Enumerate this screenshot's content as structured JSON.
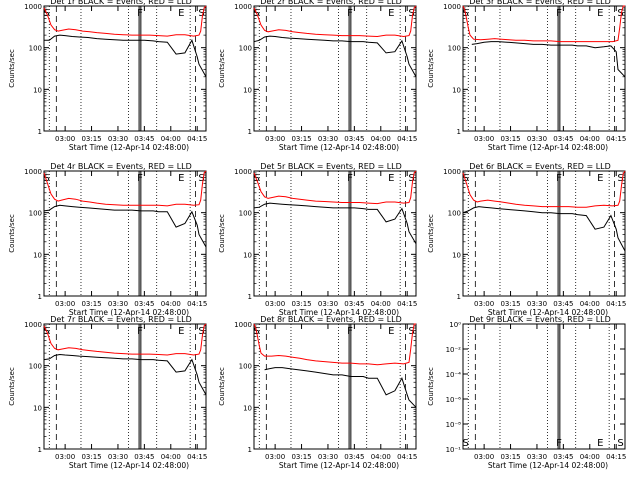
{
  "page": {
    "background": "#ffffff",
    "ink": "#000000",
    "lld_color": "#ff0000"
  },
  "shared": {
    "xlabel": "Start Time (12-Apr-14 02:48:00)",
    "ylabel": "Counts/sec",
    "x_ticks": [
      "03:00",
      "03:15",
      "03:30",
      "03:45",
      "04:00",
      "04:15"
    ],
    "y_ticks": [
      "1",
      "10",
      "100",
      "1000"
    ],
    "y_ticks_empty": [
      "10⁻¹",
      "10⁻⁸",
      "10⁻⁶",
      "10⁻⁴",
      "10⁻²",
      "10⁰"
    ],
    "event_letters": {
      "S": "S",
      "F": "F",
      "E": "E"
    }
  },
  "chart_data": [
    {
      "type": "line",
      "title": "Det 1r BLACK = Events, RED = LLD",
      "empty": false,
      "series": [
        {
          "name": "Events",
          "color": "#000000",
          "x": [
            0,
            3,
            6,
            9,
            12,
            16,
            20,
            25,
            30,
            35,
            40,
            45,
            50,
            55,
            57,
            62,
            65,
            70,
            75,
            80,
            84,
            87,
            88,
            92
          ],
          "y": [
            150,
            150,
            190,
            200,
            195,
            185,
            180,
            175,
            165,
            160,
            155,
            150,
            150,
            150,
            150,
            145,
            140,
            135,
            70,
            75,
            150,
            60,
            40,
            20
          ]
        },
        {
          "name": "LLD",
          "color": "#ff0000",
          "x": [
            0,
            2,
            4,
            6,
            8,
            10,
            14,
            18,
            22,
            26,
            30,
            35,
            40,
            45,
            50,
            55,
            60,
            65,
            70,
            75,
            80,
            85,
            88,
            89,
            90,
            91,
            92
          ],
          "y": [
            900,
            600,
            350,
            270,
            250,
            260,
            280,
            270,
            250,
            240,
            230,
            220,
            210,
            205,
            200,
            200,
            200,
            195,
            190,
            205,
            205,
            190,
            200,
            250,
            600,
            900,
            1000
          ]
        }
      ]
    },
    {
      "type": "line",
      "title": "Det 2r BLACK = Events, RED = LLD",
      "empty": false,
      "series": [
        {
          "name": "Events",
          "color": "#000000",
          "x": [
            0,
            3,
            6,
            9,
            12,
            16,
            20,
            25,
            30,
            35,
            40,
            45,
            50,
            55,
            57,
            62,
            65,
            70,
            75,
            80,
            84,
            87,
            88,
            92
          ],
          "y": [
            140,
            150,
            180,
            190,
            185,
            175,
            170,
            165,
            160,
            155,
            150,
            145,
            145,
            140,
            140,
            140,
            135,
            130,
            75,
            80,
            145,
            60,
            40,
            20
          ]
        },
        {
          "name": "LLD",
          "color": "#ff0000",
          "x": [
            0,
            2,
            4,
            6,
            8,
            10,
            14,
            18,
            22,
            26,
            30,
            35,
            40,
            45,
            50,
            55,
            60,
            65,
            70,
            75,
            80,
            85,
            88,
            89,
            90,
            91,
            92
          ],
          "y": [
            900,
            600,
            350,
            260,
            240,
            250,
            270,
            260,
            240,
            230,
            220,
            210,
            205,
            200,
            195,
            195,
            195,
            190,
            185,
            200,
            200,
            185,
            195,
            250,
            600,
            900,
            1000
          ]
        }
      ]
    },
    {
      "type": "line",
      "title": "Det 3r BLACK = Events, RED = LLD",
      "empty": false,
      "series": [
        {
          "name": "Events",
          "color": "#000000",
          "x": [
            5,
            8,
            12,
            16,
            20,
            25,
            30,
            35,
            40,
            45,
            50,
            55,
            57,
            62,
            65,
            70,
            75,
            80,
            84,
            87,
            88,
            92
          ],
          "y": [
            120,
            125,
            135,
            140,
            140,
            135,
            130,
            125,
            120,
            120,
            115,
            115,
            115,
            115,
            110,
            110,
            100,
            105,
            110,
            80,
            30,
            20
          ]
        },
        {
          "name": "LLD",
          "color": "#ff0000",
          "x": [
            0,
            1,
            2,
            3,
            4,
            6,
            10,
            14,
            18,
            22,
            26,
            30,
            35,
            40,
            45,
            50,
            55,
            60,
            65,
            70,
            75,
            80,
            85,
            88,
            89,
            90,
            91,
            92
          ],
          "y": [
            1000,
            800,
            500,
            300,
            200,
            160,
            155,
            160,
            165,
            160,
            155,
            150,
            150,
            145,
            145,
            145,
            140,
            140,
            140,
            140,
            140,
            140,
            140,
            150,
            300,
            700,
            1000,
            1000
          ]
        }
      ]
    },
    {
      "type": "line",
      "title": "Det 4r BLACK = Events, RED = LLD",
      "empty": false,
      "series": [
        {
          "name": "Events",
          "color": "#000000",
          "x": [
            0,
            3,
            6,
            9,
            12,
            16,
            20,
            25,
            30,
            35,
            40,
            45,
            50,
            55,
            57,
            62,
            65,
            70,
            75,
            80,
            84,
            87,
            88,
            92
          ],
          "y": [
            110,
            115,
            140,
            150,
            145,
            140,
            135,
            130,
            125,
            120,
            115,
            115,
            115,
            110,
            110,
            110,
            105,
            105,
            45,
            55,
            105,
            50,
            30,
            15
          ]
        },
        {
          "name": "LLD",
          "color": "#ff0000",
          "x": [
            0,
            2,
            4,
            6,
            8,
            10,
            14,
            18,
            22,
            26,
            30,
            35,
            40,
            45,
            50,
            55,
            60,
            65,
            70,
            75,
            80,
            85,
            88,
            89,
            90,
            91,
            92
          ],
          "y": [
            900,
            500,
            280,
            210,
            190,
            200,
            220,
            210,
            190,
            180,
            170,
            160,
            155,
            150,
            150,
            150,
            150,
            150,
            145,
            160,
            160,
            150,
            155,
            200,
            500,
            900,
            1000
          ]
        }
      ]
    },
    {
      "type": "line",
      "title": "Det 5r BLACK = Events, RED = LLD",
      "empty": false,
      "series": [
        {
          "name": "Events",
          "color": "#000000",
          "x": [
            0,
            3,
            6,
            9,
            12,
            16,
            20,
            25,
            30,
            35,
            40,
            45,
            50,
            55,
            57,
            62,
            65,
            70,
            75,
            80,
            84,
            87,
            88,
            92
          ],
          "y": [
            130,
            135,
            160,
            170,
            165,
            160,
            155,
            150,
            145,
            140,
            135,
            130,
            130,
            130,
            130,
            125,
            120,
            120,
            60,
            70,
            125,
            55,
            35,
            18
          ]
        },
        {
          "name": "LLD",
          "color": "#ff0000",
          "x": [
            0,
            2,
            4,
            6,
            8,
            10,
            14,
            18,
            22,
            26,
            30,
            35,
            40,
            45,
            50,
            55,
            60,
            65,
            70,
            75,
            80,
            85,
            88,
            89,
            90,
            91,
            92
          ],
          "y": [
            900,
            550,
            320,
            240,
            220,
            230,
            250,
            240,
            220,
            210,
            200,
            190,
            185,
            180,
            175,
            175,
            175,
            170,
            165,
            180,
            180,
            170,
            175,
            230,
            550,
            900,
            1000
          ]
        }
      ]
    },
    {
      "type": "line",
      "title": "Det 6r BLACK = Events, RED = LLD",
      "empty": false,
      "series": [
        {
          "name": "Events",
          "color": "#000000",
          "x": [
            0,
            3,
            6,
            9,
            12,
            16,
            20,
            25,
            30,
            35,
            40,
            45,
            50,
            55,
            57,
            62,
            65,
            70,
            75,
            80,
            84,
            87,
            88,
            92
          ],
          "y": [
            100,
            110,
            130,
            140,
            135,
            130,
            125,
            120,
            115,
            110,
            105,
            100,
            100,
            95,
            95,
            95,
            90,
            85,
            40,
            45,
            85,
            40,
            25,
            12
          ]
        },
        {
          "name": "LLD",
          "color": "#ff0000",
          "x": [
            0,
            2,
            4,
            6,
            8,
            10,
            14,
            18,
            22,
            26,
            30,
            35,
            40,
            45,
            50,
            55,
            60,
            65,
            70,
            75,
            80,
            85,
            88,
            89,
            90,
            91,
            92
          ],
          "y": [
            900,
            500,
            270,
            200,
            180,
            190,
            200,
            190,
            180,
            170,
            160,
            150,
            145,
            140,
            140,
            140,
            140,
            135,
            135,
            145,
            150,
            145,
            150,
            190,
            450,
            850,
            1000
          ]
        }
      ]
    },
    {
      "type": "line",
      "title": "Det 7r BLACK = Events, RED = LLD",
      "empty": false,
      "series": [
        {
          "name": "Events",
          "color": "#000000",
          "x": [
            0,
            3,
            6,
            9,
            12,
            16,
            20,
            25,
            30,
            35,
            40,
            45,
            50,
            55,
            57,
            62,
            65,
            70,
            75,
            80,
            84,
            87,
            88,
            92
          ],
          "y": [
            140,
            145,
            175,
            185,
            180,
            175,
            170,
            165,
            160,
            155,
            150,
            145,
            145,
            140,
            140,
            140,
            135,
            130,
            70,
            75,
            140,
            60,
            40,
            20
          ]
        },
        {
          "name": "LLD",
          "color": "#ff0000",
          "x": [
            0,
            2,
            4,
            6,
            8,
            10,
            14,
            18,
            22,
            26,
            30,
            35,
            40,
            45,
            50,
            55,
            60,
            65,
            70,
            75,
            80,
            85,
            88,
            89,
            90,
            91,
            92
          ],
          "y": [
            900,
            600,
            340,
            260,
            240,
            250,
            270,
            260,
            240,
            230,
            220,
            210,
            200,
            195,
            190,
            190,
            190,
            185,
            180,
            195,
            195,
            180,
            190,
            240,
            550,
            900,
            1000
          ]
        }
      ]
    },
    {
      "type": "line",
      "title": "Det 8r BLACK = Events, RED = LLD",
      "empty": false,
      "series": [
        {
          "name": "Events",
          "color": "#000000",
          "x": [
            6,
            9,
            12,
            16,
            20,
            25,
            30,
            35,
            40,
            45,
            50,
            55,
            57,
            62,
            65,
            70,
            75,
            80,
            84,
            87,
            88,
            92
          ],
          "y": [
            80,
            85,
            90,
            90,
            85,
            80,
            75,
            70,
            65,
            60,
            60,
            55,
            55,
            55,
            50,
            50,
            20,
            25,
            50,
            20,
            15,
            10
          ]
        },
        {
          "name": "LLD",
          "color": "#ff0000",
          "x": [
            0,
            1,
            2,
            3,
            4,
            6,
            10,
            14,
            18,
            22,
            26,
            30,
            35,
            40,
            45,
            50,
            55,
            60,
            65,
            70,
            75,
            80,
            85,
            88,
            89,
            90,
            91,
            92
          ],
          "y": [
            1000,
            800,
            500,
            300,
            200,
            170,
            170,
            175,
            170,
            160,
            150,
            140,
            130,
            125,
            120,
            115,
            115,
            110,
            110,
            105,
            110,
            115,
            110,
            120,
            250,
            600,
            1000,
            1000
          ]
        }
      ]
    },
    {
      "type": "line",
      "title": "Det 9r BLACK = Events, RED = LLD",
      "empty": true,
      "series": []
    }
  ]
}
